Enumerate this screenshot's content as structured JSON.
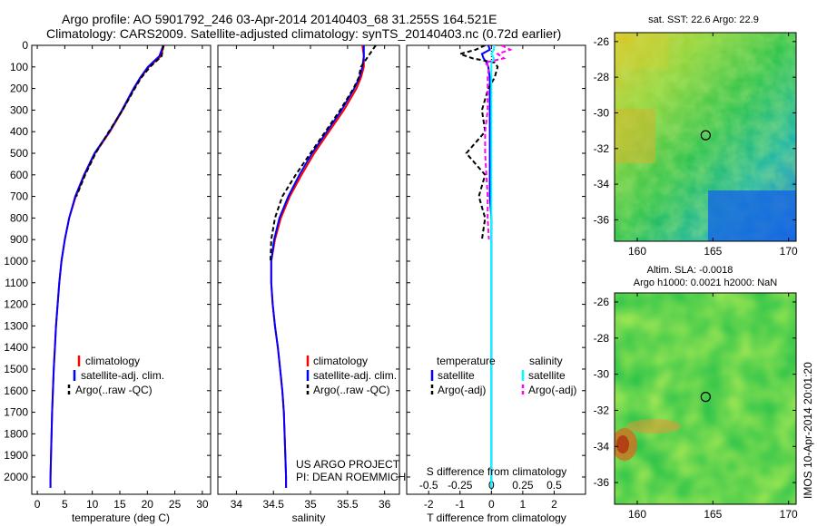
{
  "header": {
    "line1": "Argo profile: AO 5901792_246 03-Apr-2014 20140403_68 31.255S 164.521E",
    "line2": "Climatology: CARS2009. Satellite-adjusted climatology: synTS_20140403.nc (0.72d earlier)"
  },
  "colors": {
    "climatology": "#ff0000",
    "satellite": "#0000ff",
    "argo": "#000000",
    "sal_satellite": "#00ffff",
    "sal_argo": "#ff00ff"
  },
  "chart_data": [
    {
      "type": "line",
      "title": "",
      "xlabel": "temperature (deg C)",
      "ylabel": "",
      "xlim": [
        -1,
        31.5
      ],
      "ylim": [
        0,
        2080
      ],
      "y_inverted": true,
      "xticks": [
        0,
        5,
        10,
        15,
        20,
        25,
        30
      ],
      "yticks": [
        0,
        100,
        200,
        300,
        400,
        500,
        600,
        700,
        800,
        900,
        1000,
        1100,
        1200,
        1300,
        1400,
        1500,
        1600,
        1700,
        1800,
        1900,
        2000
      ],
      "legend": [
        "climatology",
        "satellite-adj. clim.",
        "Argo(..raw -QC)"
      ],
      "depth": [
        0,
        50,
        100,
        150,
        200,
        300,
        400,
        500,
        600,
        700,
        800,
        900,
        1000,
        1100,
        1200,
        1300,
        1400,
        1500,
        1600,
        1700,
        1800,
        1900,
        2000,
        2050
      ],
      "series": [
        {
          "name": "climatology",
          "values": [
            23.0,
            22.5,
            20.3,
            18.8,
            17.6,
            15.5,
            13.2,
            10.5,
            8.6,
            7.0,
            5.8,
            5.0,
            4.4,
            4.0,
            3.7,
            3.4,
            3.2,
            3.0,
            2.85,
            2.7,
            2.6,
            2.5,
            2.4,
            2.4
          ]
        },
        {
          "name": "satellite-adj. clim.",
          "values": [
            22.9,
            22.2,
            20.1,
            18.7,
            17.5,
            15.4,
            13.1,
            10.4,
            8.5,
            6.9,
            5.8,
            5.0,
            4.4,
            4.0,
            3.7,
            3.4,
            3.2,
            3.0,
            2.85,
            2.7,
            2.6,
            2.5,
            2.4,
            2.4
          ]
        },
        {
          "name": "Argo(..raw -QC)",
          "values": [
            22.9,
            22.6,
            20.5,
            18.9,
            17.7,
            15.5,
            13.0,
            10.6,
            8.7,
            7.1
          ]
        }
      ]
    },
    {
      "type": "line",
      "title": "",
      "xlabel": "salinity",
      "ylabel": "",
      "xlim": [
        33.75,
        36.2
      ],
      "ylim": [
        0,
        2080
      ],
      "y_inverted": true,
      "xticks": [
        34,
        34.5,
        35,
        35.5,
        36
      ],
      "legend": [
        "climatology",
        "satellite-adj. clim.",
        "Argo(..raw -QC)"
      ],
      "annotation": [
        "US ARGO PROJECT",
        "PI: DEAN ROEMMICH"
      ],
      "depth": [
        0,
        50,
        100,
        150,
        200,
        300,
        400,
        500,
        600,
        700,
        800,
        900,
        1000,
        1100,
        1200,
        1300,
        1400,
        1500,
        1600,
        1700,
        1800,
        1900,
        2000,
        2050
      ],
      "series": [
        {
          "name": "climatology",
          "values": [
            35.7,
            35.72,
            35.72,
            35.68,
            35.62,
            35.45,
            35.25,
            35.05,
            34.88,
            34.72,
            34.6,
            34.52,
            34.47,
            34.47,
            34.49,
            34.52,
            34.56,
            34.59,
            34.62,
            34.64,
            34.65,
            34.66,
            34.67,
            34.67
          ]
        },
        {
          "name": "satellite-adj. clim.",
          "values": [
            35.72,
            35.72,
            35.7,
            35.66,
            35.59,
            35.42,
            35.22,
            35.02,
            34.85,
            34.7,
            34.58,
            34.51,
            34.47,
            34.47,
            34.49,
            34.52,
            34.56,
            34.59,
            34.62,
            34.64,
            34.65,
            34.66,
            34.67,
            34.67
          ]
        },
        {
          "name": "Argo(..raw -QC)",
          "values": [
            35.88,
            35.78,
            35.68,
            35.65,
            35.58,
            35.4,
            35.2,
            35.0,
            34.8,
            34.62,
            34.52,
            34.47,
            34.46
          ]
        }
      ]
    },
    {
      "type": "line",
      "title": "",
      "xlabel": "T difference from climatology",
      "xlabel_top": "S difference from climatology",
      "ylabel": "",
      "xlim": [
        -2.7,
        3.0
      ],
      "ylim": [
        0,
        2080
      ],
      "y_inverted": true,
      "xticks": [
        -2,
        -1,
        0,
        1,
        2
      ],
      "sal_xlim": [
        -0.675,
        0.75
      ],
      "sal_xticks": [
        -0.5,
        -0.25,
        0,
        0.25,
        0.5
      ],
      "legend": [
        "temperature",
        "satellite",
        "Argo(-adj)",
        "salinity",
        "satellite",
        "Argo(-adj)"
      ],
      "depth": [
        0,
        20,
        40,
        60,
        80,
        100,
        150,
        200,
        300,
        400,
        500,
        600,
        700,
        800,
        900,
        1000,
        1200,
        1400,
        1600,
        1800,
        2000,
        2050
      ],
      "series": [
        {
          "name": "temperature satellite",
          "values": [
            -0.1,
            -0.05,
            -0.3,
            -0.25,
            -0.15,
            -0.1,
            -0.05,
            -0.05,
            -0.05,
            -0.05,
            -0.05,
            -0.05,
            -0.05,
            0.0,
            0.0,
            0.0,
            0.0,
            0.0,
            0.0,
            0.0,
            0.0,
            0.0
          ]
        },
        {
          "name": "temperature Argo(-adj)",
          "values": [
            -0.2,
            -0.5,
            -1.0,
            -0.6,
            0.1,
            0.2,
            0.1,
            -0.1,
            -0.3,
            -0.2,
            -0.8,
            -0.2,
            -0.4,
            -0.2,
            -0.3
          ]
        },
        {
          "name": "salinity satellite",
          "values": [
            0.02,
            0.02,
            0.0,
            0.02,
            0.0,
            0.0,
            0.0,
            0.0,
            0.0,
            0.0,
            0.0,
            0.0,
            0.0,
            0.0,
            0.0,
            0.0,
            0.0,
            0.0,
            0.0,
            0.0,
            0.0,
            0.0
          ]
        },
        {
          "name": "salinity Argo(-adj)",
          "values": [
            0.08,
            0.15,
            0.05,
            0.1,
            -0.05,
            -0.02,
            -0.03,
            -0.03,
            -0.03,
            -0.05,
            -0.05,
            -0.04,
            -0.03,
            -0.03,
            -0.02
          ]
        }
      ]
    },
    {
      "type": "heatmap",
      "title": "sat. SST: 22.6 Argo: 22.9",
      "xlim": [
        158.5,
        170.5
      ],
      "ylim": [
        -37.2,
        -25.5
      ],
      "xticks": [
        160,
        165,
        170
      ],
      "yticks": [
        -26,
        -28,
        -30,
        -32,
        -34,
        -36
      ],
      "marker": {
        "lon": 164.521,
        "lat": -31.255
      }
    },
    {
      "type": "heatmap",
      "title": "Altim. SLA: -0.0018",
      "subtitle": "Argo h1000: 0.0021 h2000: NaN",
      "xlim": [
        158.5,
        170.5
      ],
      "ylim": [
        -37.2,
        -25.5
      ],
      "xticks": [
        160,
        165,
        170
      ],
      "yticks": [
        -26,
        -28,
        -30,
        -32,
        -34,
        -36
      ],
      "marker": {
        "lon": 164.521,
        "lat": -31.255
      }
    }
  ],
  "credit": "IMOS 10-Apr-2014 20:01:20"
}
